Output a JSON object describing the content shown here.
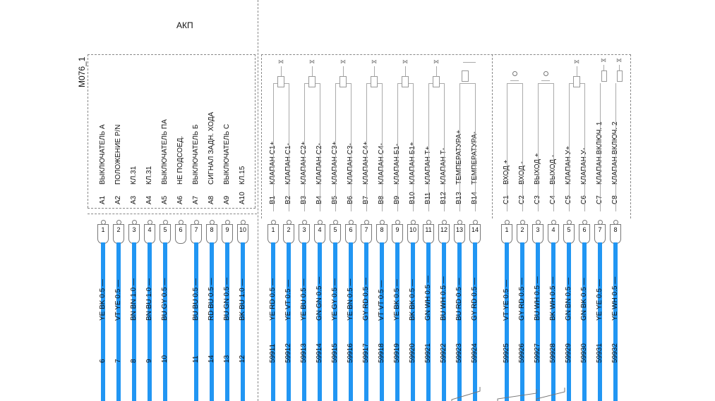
{
  "title": "АКП",
  "connector_id": "M076_1",
  "groups": [
    {
      "id": "A",
      "pins": [
        {
          "pin": "1",
          "code": "A1",
          "name": "ВЫКЛЮЧАТЕЛЬ А",
          "wire": "YE BK 0.5 —",
          "num": "6"
        },
        {
          "pin": "2",
          "code": "A2",
          "name": "ПОЛОЖЕНИЕ P/N",
          "wire": "VT YE 0.5 —",
          "num": "7"
        },
        {
          "pin": "3",
          "code": "A3",
          "name": "КЛ.31",
          "wire": "BN BN 1.0 —",
          "num": "8"
        },
        {
          "pin": "4",
          "code": "A4",
          "name": "КЛ.31",
          "wire": "BN BU 1.0 —",
          "num": "9"
        },
        {
          "pin": "5",
          "code": "A5",
          "name": "ВЫКЛЮЧАТЕЛЬ ПА",
          "wire": "BU GY 0.5 —",
          "num": "10"
        },
        {
          "pin": "6",
          "code": "A6",
          "name": "НЕ ПОДСОЕД.",
          "wire": "",
          "num": ""
        },
        {
          "pin": "7",
          "code": "A7",
          "name": "ВЫКЛЮЧАТЕЛЬ Б",
          "wire": "BU BU 0.5 —",
          "num": "11"
        },
        {
          "pin": "8",
          "code": "A8",
          "name": "СИГНАЛ ЗАДН. ХОДА",
          "wire": "RD BU 0.5 —",
          "num": "14"
        },
        {
          "pin": "9",
          "code": "A9",
          "name": "ВЫКЛЮЧАТЕЛЬ С",
          "wire": "BU GN 0.5 —",
          "num": "13"
        },
        {
          "pin": "10",
          "code": "A10",
          "name": "КЛ.15",
          "wire": "BK BU 1.0 —",
          "num": "12"
        }
      ]
    },
    {
      "id": "B",
      "pins": [
        {
          "pin": "1",
          "code": "B1",
          "name": "КЛАПАН С1+",
          "wire": "YE RD 0.5 —",
          "num": "59911"
        },
        {
          "pin": "2",
          "code": "B2",
          "name": "КЛАПАН С1-",
          "wire": "YE VT 0.5 —",
          "num": "59912"
        },
        {
          "pin": "3",
          "code": "B3",
          "name": "КЛАПАН С2+",
          "wire": "YE BU 0.5 —",
          "num": "59913"
        },
        {
          "pin": "4",
          "code": "B4",
          "name": "КЛАПАН С2-",
          "wire": "GN GN 0.5 —",
          "num": "59914"
        },
        {
          "pin": "5",
          "code": "B5",
          "name": "КЛАПАН С3+",
          "wire": "YE GY 0.5 —",
          "num": "59915"
        },
        {
          "pin": "6",
          "code": "B6",
          "name": "КЛАПАН С3-",
          "wire": "YE BN 0.5 —",
          "num": "59916"
        },
        {
          "pin": "7",
          "code": "B7",
          "name": "КЛАПАН С4+",
          "wire": "GY RD 0.5 —",
          "num": "59917"
        },
        {
          "pin": "8",
          "code": "B8",
          "name": "КЛАПАН С4-",
          "wire": "VT VT 0.5 —",
          "num": "59918"
        },
        {
          "pin": "9",
          "code": "B9",
          "name": "КЛАПАН Б1-",
          "wire": "YE BK 0.5 —",
          "num": "59919"
        },
        {
          "pin": "10",
          "code": "B10",
          "name": "КЛАПАН Б1+",
          "wire": "BK BK 0.5 —",
          "num": "59920"
        },
        {
          "pin": "11",
          "code": "B11",
          "name": "КЛАПАН Т+",
          "wire": "GN WH 0.5 —",
          "num": "59921"
        },
        {
          "pin": "12",
          "code": "B12",
          "name": "КЛАПАН Т-",
          "wire": "BU WH 0.5 —",
          "num": "59922"
        },
        {
          "pin": "13",
          "code": "B13",
          "name": "ТЕМПЕРАТУРА+",
          "wire": "BU RD 0.5 —",
          "num": "59923"
        },
        {
          "pin": "14",
          "code": "B14",
          "name": "ТЕМПЕРАТУРА-",
          "wire": "GY RD 0.5 —",
          "num": "59924"
        }
      ]
    },
    {
      "id": "C",
      "pins": [
        {
          "pin": "1",
          "code": "C1",
          "name": "ВХОД +",
          "wire": "VT YE 0.5 —",
          "num": "59925"
        },
        {
          "pin": "2",
          "code": "C2",
          "name": "ВХОД -",
          "wire": "GY RD 0.5 —",
          "num": "59926"
        },
        {
          "pin": "3",
          "code": "C3",
          "name": "ВЫХОД +",
          "wire": "BU WH 0.5 —",
          "num": "59927"
        },
        {
          "pin": "4",
          "code": "C4",
          "name": "ВЫХОД -",
          "wire": "BK WH 0.5 —",
          "num": "59928"
        },
        {
          "pin": "5",
          "code": "C5",
          "name": "КЛАПАН У+",
          "wire": "GN BN 0.5 —",
          "num": "59929"
        },
        {
          "pin": "6",
          "code": "C6",
          "name": "КЛАПАН У-",
          "wire": "GN BK 0.5 —",
          "num": "59930"
        },
        {
          "pin": "7",
          "code": "C7",
          "name": "КЛАПАН ВКЛЮЧ. 1",
          "wire": "YE YE 0.5 —",
          "num": "59931"
        },
        {
          "pin": "8",
          "code": "C8",
          "name": "КЛАПАН ВКЛЮЧ. 2",
          "wire": "YE WH 0.5 —",
          "num": "59932"
        }
      ]
    }
  ],
  "colors": {
    "wire": "#2196f3",
    "frame": "#888888"
  }
}
